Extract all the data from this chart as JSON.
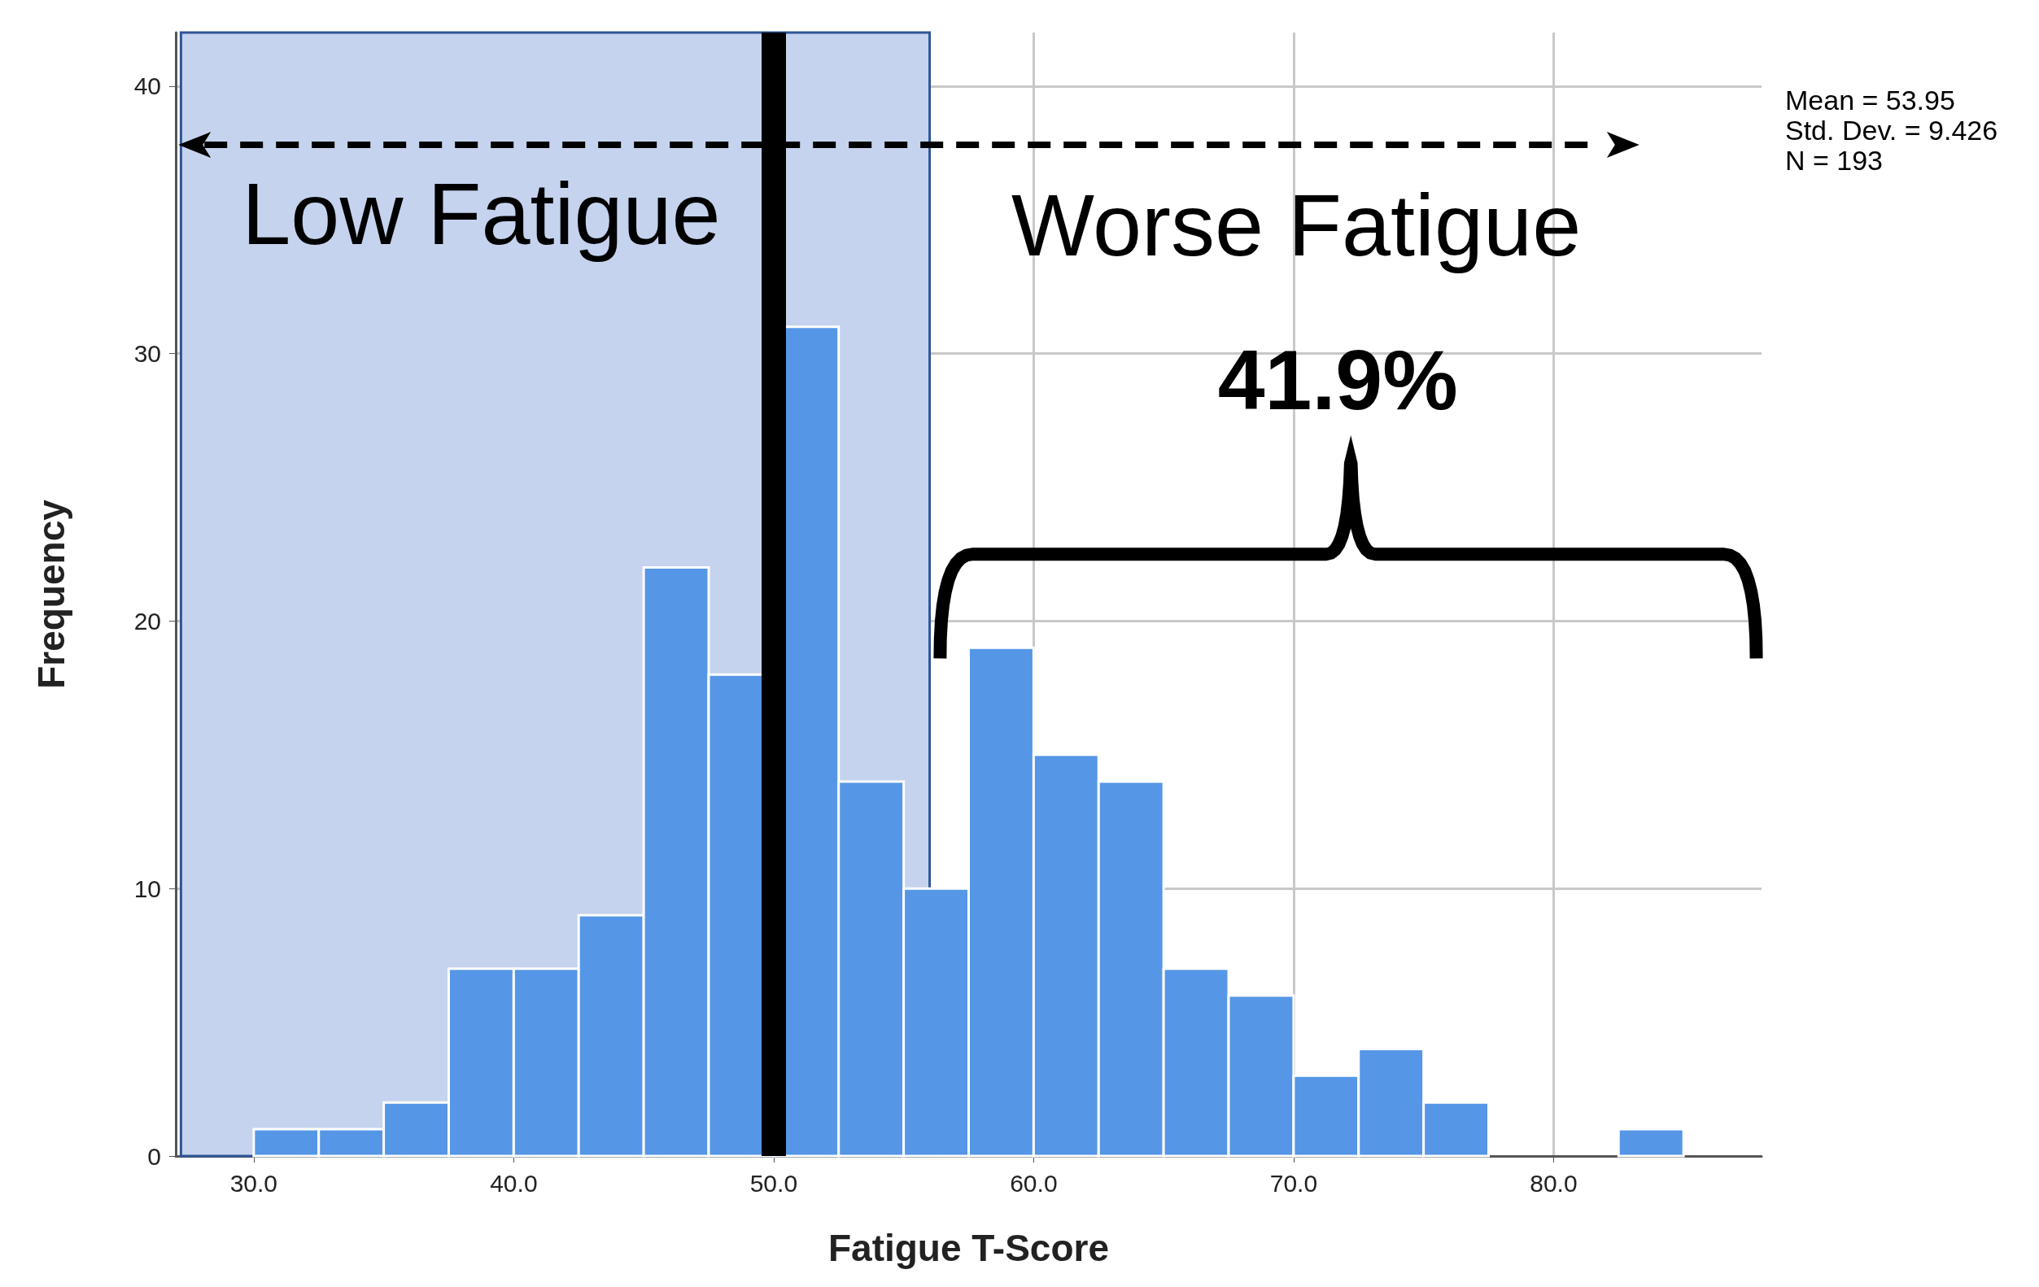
{
  "chart_data": {
    "type": "histogram",
    "xlabel": "Fatigue T-Score",
    "ylabel": "Frequency",
    "bins": [
      30,
      32.5,
      35,
      37.5,
      40,
      42.5,
      45,
      47.5,
      50,
      52.5,
      55,
      57.5,
      60,
      62.5,
      65,
      67.5,
      70,
      72.5,
      75,
      77.5,
      80,
      82.5,
      85
    ],
    "values": [
      1,
      1,
      2,
      7,
      7,
      9,
      22,
      18,
      31,
      14,
      10,
      19,
      15,
      14,
      7,
      6,
      3,
      4,
      2,
      0,
      0,
      1
    ],
    "color": "#5596e6",
    "xlim": [
      27,
      88
    ],
    "xticks": [
      {
        "value": 30,
        "label": "30.0"
      },
      {
        "value": 40,
        "label": "40.0"
      },
      {
        "value": 50,
        "label": "50.0"
      },
      {
        "value": 60,
        "label": "60.0"
      },
      {
        "value": 70,
        "label": "70.0"
      },
      {
        "value": 80,
        "label": "80.0"
      }
    ],
    "ylim": [
      0,
      42
    ],
    "yticks": [
      0,
      10,
      20,
      30,
      40
    ],
    "grid": true,
    "bands": [
      {
        "axis": "x",
        "from": 27.2,
        "to": 56,
        "label": "Low Fatigue",
        "color": "#c5d3ee"
      }
    ],
    "ref_lines": [
      {
        "axis": "x",
        "value": 50,
        "color": "#000000",
        "line_style": "solid"
      }
    ],
    "annotations": [
      "Worse Fatigue",
      "41.9%",
      "Mean = 53.95",
      "Std. Dev. = 9.426",
      "N = 193"
    ]
  }
}
